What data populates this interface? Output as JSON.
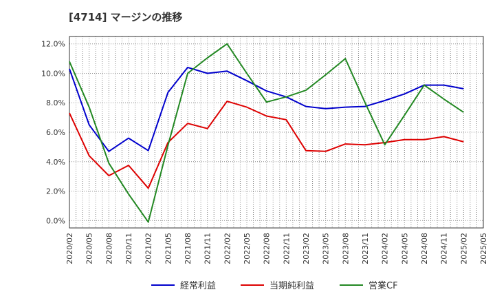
{
  "title": "[4714]  マージンの推移",
  "chart_data": {
    "type": "line",
    "title": "[4714]  マージンの推移",
    "xlabel": "",
    "ylabel": "",
    "ylim": [
      -0.5,
      12.5
    ],
    "y_ticks": [
      "0.0%",
      "2.0%",
      "4.0%",
      "6.0%",
      "8.0%",
      "10.0%",
      "12.0%"
    ],
    "y_tick_values": [
      0,
      2,
      4,
      6,
      8,
      10,
      12
    ],
    "grid": true,
    "legend_position": "bottom",
    "x": [
      "2020/02",
      "2020/05",
      "2020/08",
      "2020/11",
      "2021/02",
      "2021/05",
      "2021/08",
      "2021/11",
      "2022/02",
      "2022/05",
      "2022/08",
      "2022/11",
      "2023/02",
      "2023/05",
      "2023/08",
      "2023/11",
      "2024/02",
      "2024/05",
      "2024/08",
      "2024/11",
      "2025/02",
      "2025/05"
    ],
    "series": [
      {
        "name": "経常利益",
        "color": "#0000cc",
        "values": [
          10.3,
          6.5,
          4.7,
          5.6,
          4.75,
          8.7,
          10.4,
          10.0,
          10.15,
          9.5,
          8.8,
          8.4,
          7.75,
          7.6,
          7.7,
          7.75,
          8.15,
          8.6,
          9.2,
          9.2,
          8.95,
          null
        ]
      },
      {
        "name": "当期純利益",
        "color": "#dd0000",
        "values": [
          7.3,
          4.4,
          3.05,
          3.75,
          2.2,
          5.3,
          6.6,
          6.25,
          8.1,
          7.7,
          7.1,
          6.85,
          4.75,
          4.7,
          5.2,
          5.15,
          5.3,
          5.5,
          5.5,
          5.7,
          5.35,
          null
        ]
      },
      {
        "name": "営業CF",
        "color": "#228822",
        "values": [
          10.8,
          7.7,
          3.9,
          1.8,
          -0.1,
          5.1,
          10.0,
          11.05,
          12.0,
          10.0,
          8.05,
          8.4,
          8.85,
          9.9,
          11.0,
          8.0,
          5.15,
          7.15,
          9.2,
          8.25,
          7.35,
          null
        ]
      }
    ]
  }
}
